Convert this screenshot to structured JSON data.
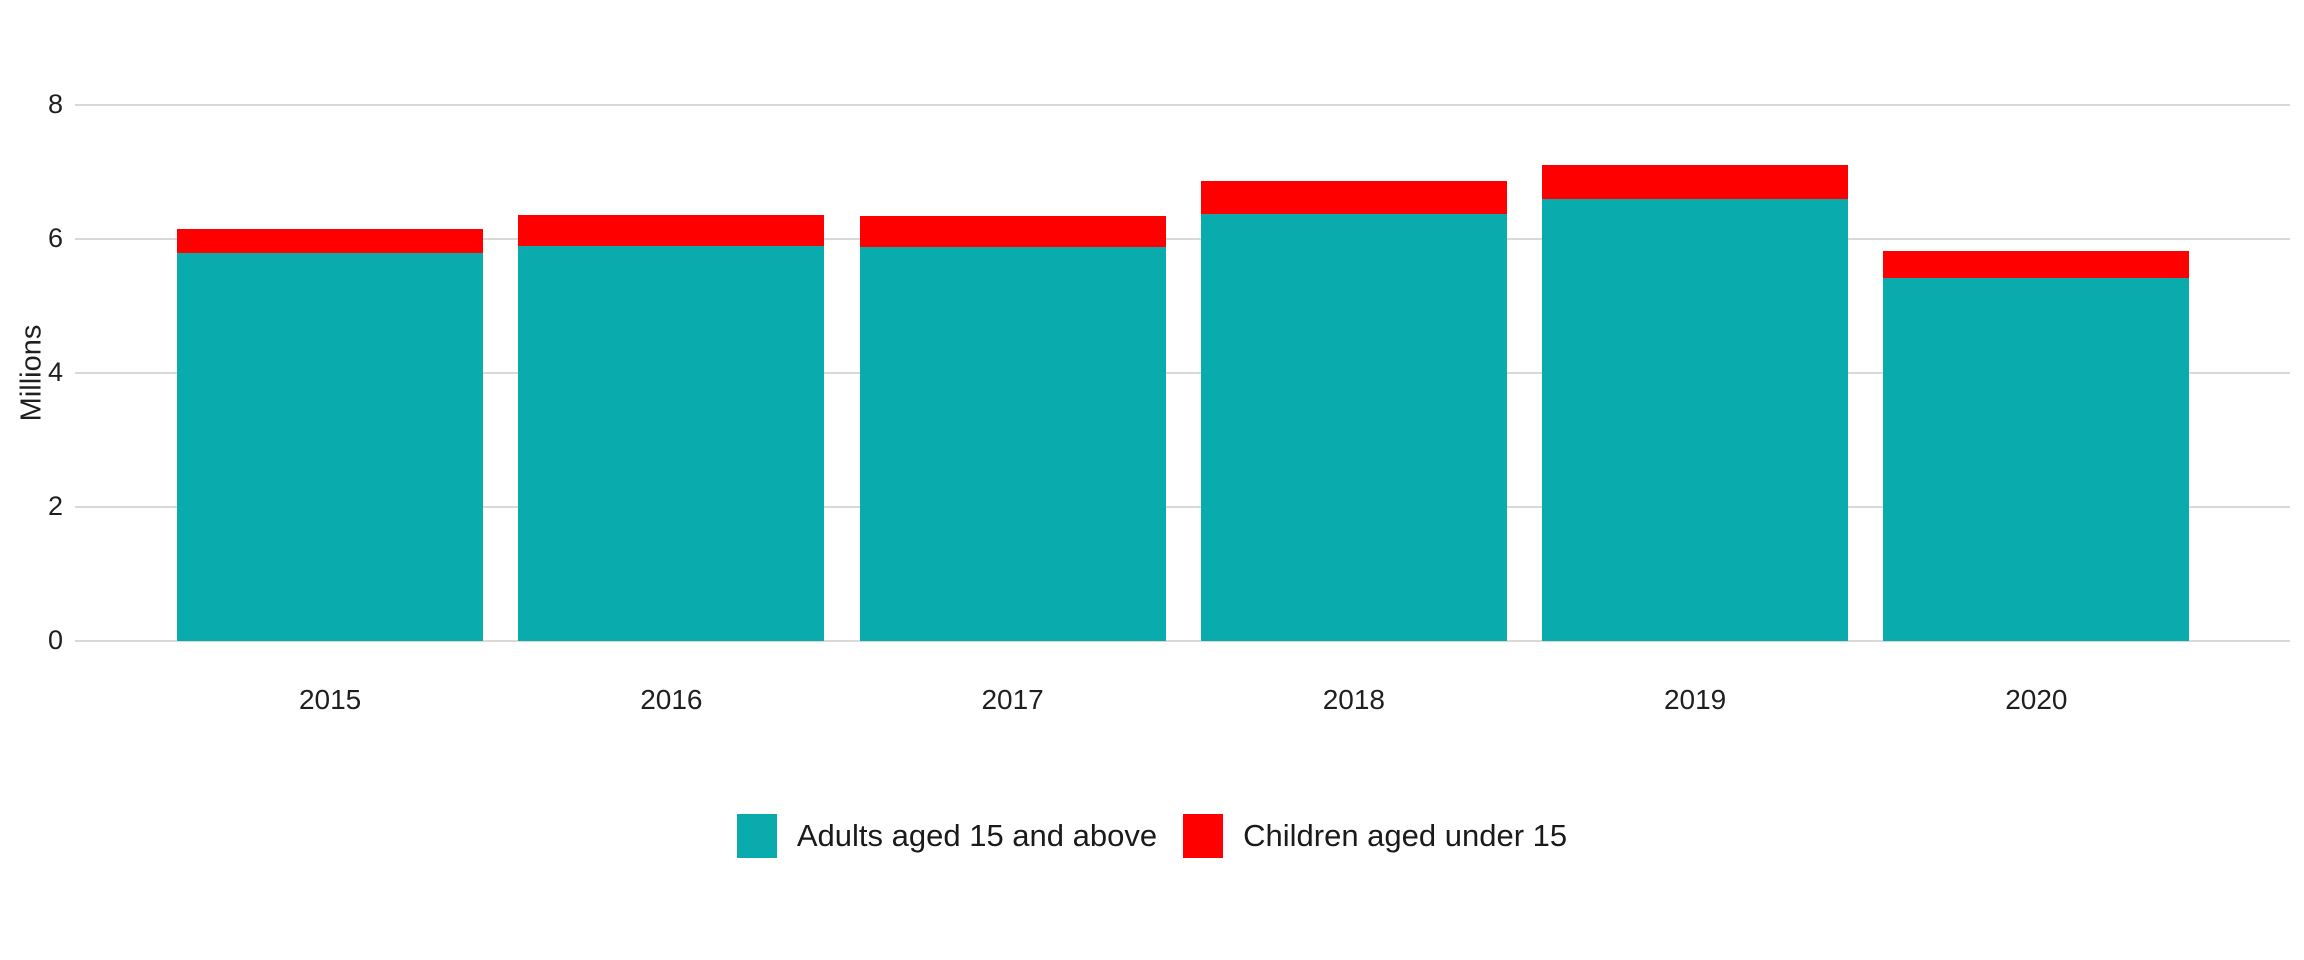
{
  "chart_data": {
    "type": "bar",
    "stacked": true,
    "title": "",
    "xlabel": "",
    "ylabel": "Millions",
    "categories": [
      "2015",
      "2016",
      "2017",
      "2018",
      "2019",
      "2020"
    ],
    "series": [
      {
        "name": "Adults aged 15 and above",
        "color": "#09abac",
        "values": [
          5.79,
          5.9,
          5.88,
          6.37,
          6.6,
          5.42
        ]
      },
      {
        "name": "Children aged under 15",
        "color": "#ff0000",
        "values": [
          0.36,
          0.46,
          0.46,
          0.5,
          0.51,
          0.4
        ]
      }
    ],
    "ylim": [
      0,
      8
    ],
    "yticks": [
      0,
      2,
      4,
      6,
      8
    ],
    "grid": true,
    "gridline_color": "#d9d9d9",
    "background_color": "#ffffff",
    "text_color": "#1f1f1f",
    "legend_position": "bottom"
  }
}
